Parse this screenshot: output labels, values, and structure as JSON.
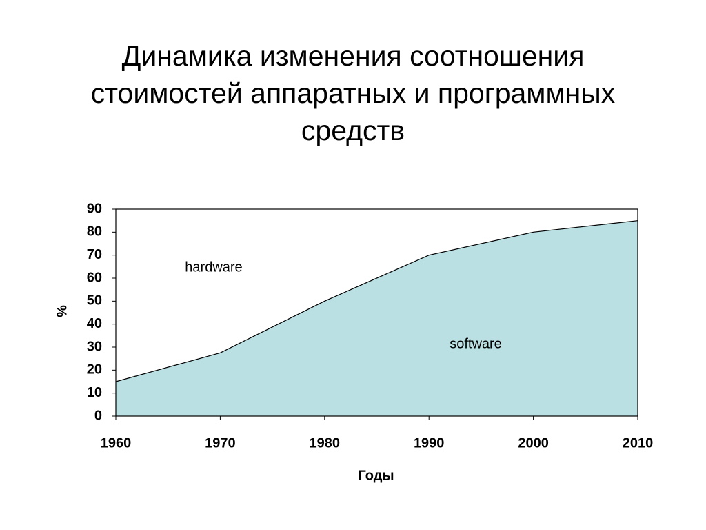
{
  "chart_data": {
    "type": "area",
    "title": "Динамика изменения соотношения стоимостей аппаратных и программных средств",
    "x": [
      1960,
      1970,
      1980,
      1990,
      2000,
      2010
    ],
    "values": [
      15,
      27.5,
      50,
      70,
      80,
      85
    ],
    "color": "#bae0e3",
    "xlim": [
      1960,
      2010
    ],
    "xticks": [
      1960,
      1970,
      1980,
      1990,
      2000,
      2010
    ],
    "ylim": [
      0,
      90
    ],
    "yticks": [
      0,
      10,
      20,
      30,
      40,
      50,
      60,
      70,
      80,
      90
    ],
    "xlabel": "Годы",
    "ylabel": "%",
    "annotations": [
      "hardware",
      "software"
    ]
  }
}
